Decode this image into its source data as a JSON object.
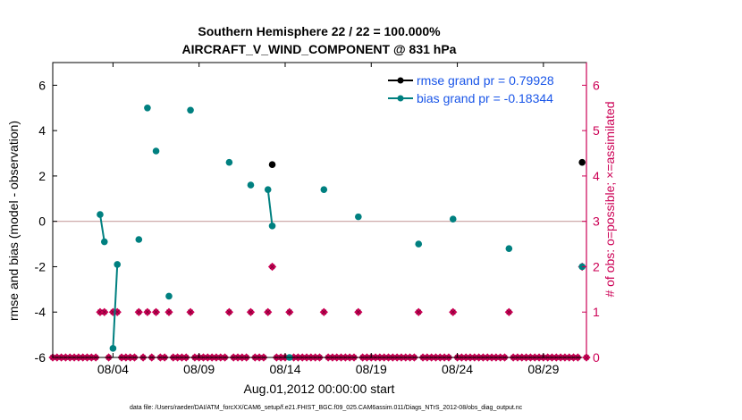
{
  "chart_data": {
    "type": "scatter",
    "title": "Southern Hemisphere 22 / 22 = 100.000%",
    "subtitle": "AIRCRAFT_V_WIND_COMPONENT @ 831 hPa",
    "xlabel": "Aug.01,2012 00:00:00 start",
    "ylabel_left": "rmse and bias (model - observation)",
    "ylabel_right": "# of obs: o=possible; ×=assimilated",
    "xlim": [
      0.5,
      31.5
    ],
    "ylim_left": [
      -6,
      7
    ],
    "ylim_right": [
      0,
      6.5
    ],
    "x_ticks": [
      4,
      9,
      14,
      19,
      24,
      29
    ],
    "x_tick_labels": [
      "08/04",
      "08/09",
      "08/14",
      "08/19",
      "08/24",
      "08/29"
    ],
    "y_ticks_left": [
      -6,
      -4,
      -2,
      0,
      2,
      4,
      6
    ],
    "y_ticks_right": [
      0,
      1,
      2,
      3,
      4,
      5,
      6
    ],
    "colors": {
      "rmse": "#000000",
      "bias": "#008080",
      "obs": "#cc0055",
      "zero_line": "#c8a0a0"
    },
    "legend": [
      {
        "name": "rmse grand pr = 0.79928",
        "color": "#000000"
      },
      {
        "name": "bias grand pr = -0.18344",
        "color": "#008080"
      }
    ],
    "series": [
      {
        "name": "rmse",
        "points": [
          [
            13.25,
            2.5
          ],
          [
            31.25,
            2.6
          ]
        ]
      },
      {
        "name": "bias",
        "points": [
          [
            3.25,
            0.3
          ],
          [
            3.5,
            -0.9
          ],
          [
            4.0,
            -5.6
          ],
          [
            4.25,
            -1.9
          ],
          [
            5.5,
            -0.8
          ],
          [
            6.0,
            5.0
          ],
          [
            6.5,
            3.1
          ],
          [
            7.25,
            -3.3
          ],
          [
            8.5,
            4.9
          ],
          [
            10.75,
            2.6
          ],
          [
            12.0,
            1.6
          ],
          [
            13.0,
            1.4
          ],
          [
            13.25,
            -0.2
          ],
          [
            14.25,
            -6.0
          ],
          [
            16.25,
            1.4
          ],
          [
            18.25,
            0.2
          ],
          [
            21.75,
            -1.0
          ],
          [
            23.75,
            0.1
          ],
          [
            27.0,
            -1.2
          ],
          [
            31.25,
            -2.0
          ]
        ],
        "connected_groups": [
          [
            0,
            1
          ],
          [
            2,
            3
          ],
          [
            11,
            12
          ]
        ]
      }
    ],
    "obs_counts": [
      {
        "x": 3.25,
        "value": 1
      },
      {
        "x": 3.5,
        "value": 1
      },
      {
        "x": 4.0,
        "value": 1
      },
      {
        "x": 4.25,
        "value": 1
      },
      {
        "x": 5.5,
        "value": 1
      },
      {
        "x": 6.0,
        "value": 1
      },
      {
        "x": 6.5,
        "value": 1
      },
      {
        "x": 7.25,
        "value": 1
      },
      {
        "x": 8.5,
        "value": 1
      },
      {
        "x": 10.75,
        "value": 1
      },
      {
        "x": 12.0,
        "value": 1
      },
      {
        "x": 13.0,
        "value": 1
      },
      {
        "x": 13.25,
        "value": 2
      },
      {
        "x": 14.25,
        "value": 1
      },
      {
        "x": 16.25,
        "value": 1
      },
      {
        "x": 18.25,
        "value": 1
      },
      {
        "x": 21.75,
        "value": 1
      },
      {
        "x": 23.75,
        "value": 1
      },
      {
        "x": 27.0,
        "value": 1
      },
      {
        "x": 31.25,
        "value": 2
      }
    ],
    "zero_obs_step": 0.25,
    "footer": "data file: /Users/raeder/DAI/ATM_forcXX/CAM6_setup/f.e21.FHIST_BGC.f09_025.CAM6assim.011/Diags_NTrS_2012-08/obs_diag_output.nc"
  }
}
